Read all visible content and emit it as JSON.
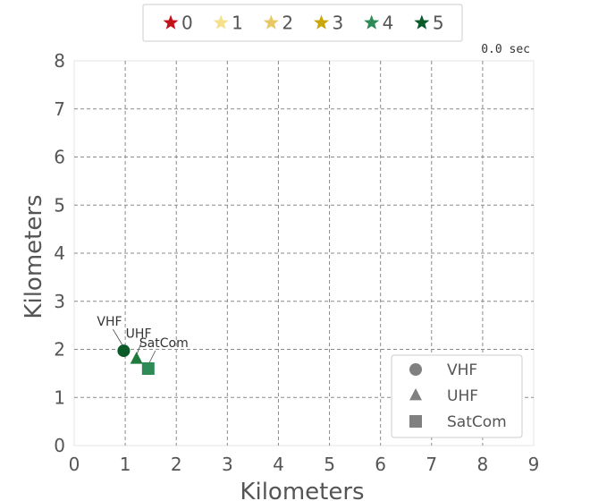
{
  "chart_data": {
    "type": "scatter",
    "xlabel": "Kilometers",
    "ylabel": "Kilometers",
    "xlim": [
      0,
      9
    ],
    "ylim": [
      0,
      8
    ],
    "x_ticks": [
      "0",
      "1",
      "2",
      "3",
      "4",
      "5",
      "6",
      "7",
      "8",
      "9"
    ],
    "y_ticks": [
      "0",
      "1",
      "2",
      "3",
      "4",
      "5",
      "6",
      "7",
      "8"
    ],
    "grid": true,
    "timer": "0.0 sec",
    "team_legend": {
      "placement": "top-center",
      "entries": [
        {
          "label": "0",
          "color": "#c4121a"
        },
        {
          "label": "1",
          "color": "#f5e08c"
        },
        {
          "label": "2",
          "color": "#e8c864"
        },
        {
          "label": "3",
          "color": "#c9a70a"
        },
        {
          "label": "4",
          "color": "#2e8b57"
        },
        {
          "label": "5",
          "color": "#0b5a2a"
        }
      ]
    },
    "shape_legend": {
      "placement": "lower-right",
      "entries": [
        {
          "label": "VHF",
          "marker": "circle",
          "color": "#808080"
        },
        {
          "label": "UHF",
          "marker": "triangle",
          "color": "#808080"
        },
        {
          "label": "SatCom",
          "marker": "square",
          "color": "#808080"
        }
      ]
    },
    "points": [
      {
        "x": 0.97,
        "y": 1.97,
        "marker": "circle",
        "color": "#0b5a2a",
        "label": "VHF"
      },
      {
        "x": 1.22,
        "y": 1.8,
        "marker": "triangle",
        "color": "#1f7a3c",
        "label": "UHF"
      },
      {
        "x": 1.45,
        "y": 1.6,
        "marker": "square",
        "color": "#2e8b57",
        "label": "SatCom"
      }
    ]
  }
}
